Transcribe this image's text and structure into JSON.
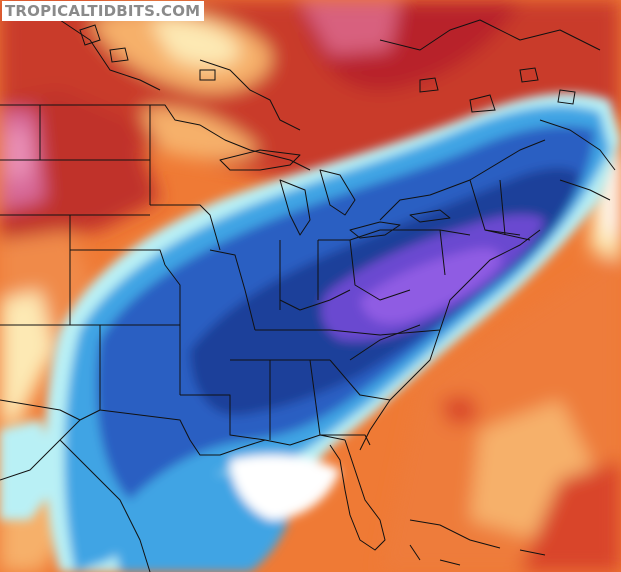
{
  "watermark": "TROPICALTIDBITS.COM",
  "map": {
    "type": "temperature-anomaly-map",
    "region": "North America",
    "palette": {
      "deep_red": "#b8242c",
      "red": "#d9452a",
      "orange": "#ef7a35",
      "light_orange": "#f6b06a",
      "pale_yellow": "#fde9b4",
      "white": "#ffffff",
      "light_cyan": "#b9f0f5",
      "sky_blue": "#3fa4e4",
      "blue": "#2a5fc2",
      "navy": "#1d3f9a",
      "purple": "#6a4ad0",
      "violet": "#8f5be3",
      "pink": "#d86a9a"
    },
    "boundary_color": "#111111"
  }
}
